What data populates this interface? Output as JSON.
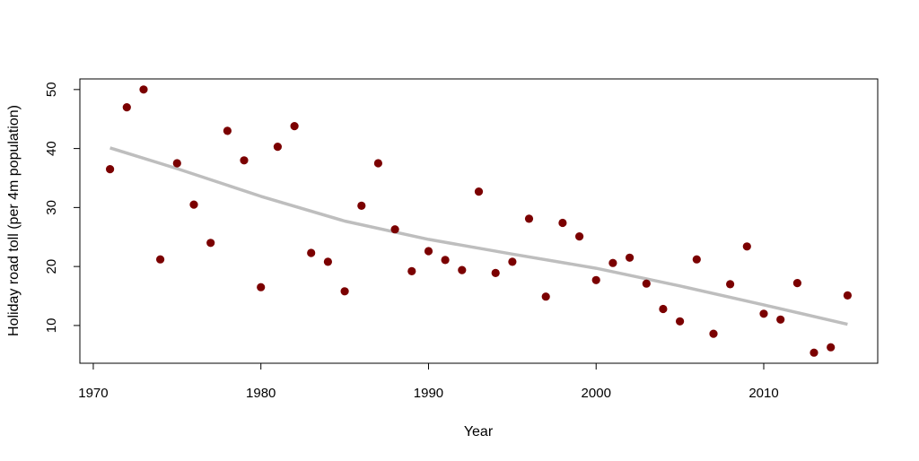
{
  "chart_data": {
    "type": "scatter",
    "title": "",
    "xlabel": "Year",
    "ylabel": "Holiday road toll (per 4m population)",
    "xlim": [
      1969.2,
      2016.8
    ],
    "ylim": [
      3.6,
      51.8
    ],
    "x_ticks": [
      1970,
      1980,
      1990,
      2000,
      2010
    ],
    "x_tick_labels": [
      "1970",
      "1980",
      "1990",
      "2000",
      "2010"
    ],
    "y_ticks": [
      10,
      20,
      30,
      40,
      50
    ],
    "y_tick_labels": [
      "10",
      "20",
      "30",
      "40",
      "50"
    ],
    "grid": false,
    "legend": "none",
    "series": [
      {
        "type": "scatter",
        "color": "#7b0000",
        "points": [
          {
            "x": 1971,
            "y": 36.5
          },
          {
            "x": 1972,
            "y": 47.0
          },
          {
            "x": 1973,
            "y": 50.0
          },
          {
            "x": 1974,
            "y": 21.2
          },
          {
            "x": 1975,
            "y": 37.5
          },
          {
            "x": 1976,
            "y": 30.5
          },
          {
            "x": 1977,
            "y": 24.0
          },
          {
            "x": 1978,
            "y": 43.0
          },
          {
            "x": 1979,
            "y": 38.0
          },
          {
            "x": 1980,
            "y": 16.5
          },
          {
            "x": 1981,
            "y": 40.3
          },
          {
            "x": 1982,
            "y": 43.8
          },
          {
            "x": 1983,
            "y": 22.3
          },
          {
            "x": 1984,
            "y": 20.8
          },
          {
            "x": 1985,
            "y": 15.8
          },
          {
            "x": 1986,
            "y": 30.3
          },
          {
            "x": 1987,
            "y": 37.5
          },
          {
            "x": 1988,
            "y": 26.3
          },
          {
            "x": 1989,
            "y": 19.2
          },
          {
            "x": 1990,
            "y": 22.6
          },
          {
            "x": 1991,
            "y": 21.1
          },
          {
            "x": 1992,
            "y": 19.4
          },
          {
            "x": 1993,
            "y": 32.7
          },
          {
            "x": 1994,
            "y": 18.9
          },
          {
            "x": 1995,
            "y": 20.8
          },
          {
            "x": 1996,
            "y": 28.1
          },
          {
            "x": 1997,
            "y": 14.9
          },
          {
            "x": 1998,
            "y": 27.4
          },
          {
            "x": 1999,
            "y": 25.1
          },
          {
            "x": 2000,
            "y": 17.7
          },
          {
            "x": 2001,
            "y": 20.6
          },
          {
            "x": 2002,
            "y": 21.5
          },
          {
            "x": 2003,
            "y": 17.1
          },
          {
            "x": 2004,
            "y": 12.8
          },
          {
            "x": 2005,
            "y": 10.7
          },
          {
            "x": 2006,
            "y": 21.2
          },
          {
            "x": 2007,
            "y": 8.6
          },
          {
            "x": 2008,
            "y": 17.0
          },
          {
            "x": 2009,
            "y": 23.4
          },
          {
            "x": 2010,
            "y": 12.0
          },
          {
            "x": 2011,
            "y": 11.0
          },
          {
            "x": 2012,
            "y": 17.2
          },
          {
            "x": 2013,
            "y": 5.4
          },
          {
            "x": 2014,
            "y": 6.3
          },
          {
            "x": 2015,
            "y": 15.1
          }
        ]
      },
      {
        "type": "line",
        "color": "#bebebe",
        "points": [
          {
            "x": 1971,
            "y": 40.1
          },
          {
            "x": 1975,
            "y": 36.6
          },
          {
            "x": 1980,
            "y": 31.9
          },
          {
            "x": 1985,
            "y": 27.7
          },
          {
            "x": 1990,
            "y": 24.6
          },
          {
            "x": 1995,
            "y": 22.1
          },
          {
            "x": 2000,
            "y": 19.7
          },
          {
            "x": 2005,
            "y": 16.7
          },
          {
            "x": 2010,
            "y": 13.5
          },
          {
            "x": 2015,
            "y": 10.2
          }
        ]
      }
    ]
  }
}
